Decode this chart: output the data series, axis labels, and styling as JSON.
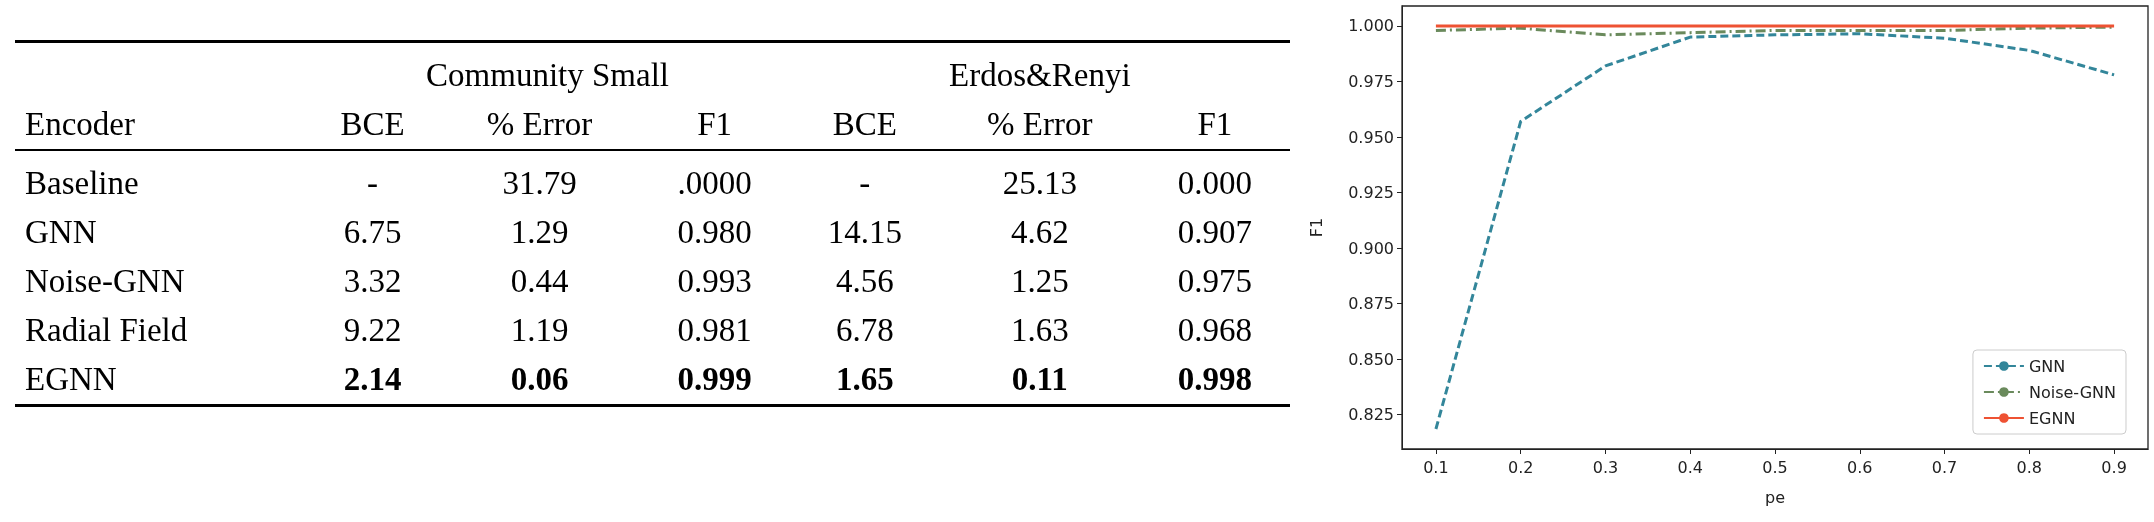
{
  "chart_data": [
    {
      "type": "other",
      "ylabel": "Encoder",
      "annotations": [
        "Community Small",
        "Erdos&Renyi"
      ],
      "categories": [
        "BCE",
        "% Error",
        "F1",
        "BCE",
        "% Error",
        "F1"
      ],
      "y_categories": [
        "Baseline",
        "GNN",
        "Noise-GNN",
        "Radial Field",
        "EGNN"
      ],
      "cell_labels": [
        [
          "-",
          "31.79",
          ".0000",
          "-",
          "25.13",
          "0.000"
        ],
        [
          "6.75",
          "1.29",
          "0.980",
          "14.15",
          "4.62",
          "0.907"
        ],
        [
          "3.32",
          "0.44",
          "0.993",
          "4.56",
          "1.25",
          "0.975"
        ],
        [
          "9.22",
          "1.19",
          "0.981",
          "6.78",
          "1.63",
          "0.968"
        ],
        [
          "2.14",
          "0.06",
          "0.999",
          "1.65",
          "0.11",
          "0.998"
        ]
      ]
    },
    {
      "type": "line",
      "xlabel": "pe",
      "ylabel": "F1",
      "x": [
        0.1,
        0.2,
        0.3,
        0.4,
        0.5,
        0.6,
        0.7,
        0.8,
        0.9
      ],
      "series": [
        {
          "name": "GNN",
          "color": "#33869a",
          "line_style": "dashed",
          "values": [
            0.8185,
            0.957,
            0.982,
            0.995,
            0.996,
            0.9965,
            0.9945,
            0.989,
            0.978
          ]
        },
        {
          "name": "Noise-GNN",
          "color": "#6a8a5c",
          "line_style": "dashdot",
          "values": [
            0.998,
            0.999,
            0.996,
            0.997,
            0.998,
            0.998,
            0.998,
            0.999,
            0.9995
          ]
        },
        {
          "name": "EGNN",
          "color": "#ee5233",
          "line_style": "solid",
          "values": [
            1.0,
            1.0,
            1.0,
            1.0,
            1.0,
            1.0,
            1.0,
            1.0,
            1.0
          ]
        }
      ],
      "xlim": [
        0.06,
        0.94
      ],
      "xticks": [
        0.1,
        0.2,
        0.3,
        0.4,
        0.5,
        0.6,
        0.7,
        0.8,
        0.9
      ],
      "ylim": [
        0.8095,
        1.009
      ],
      "yticks": [
        {
          "value": 0.825,
          "label": "0.825"
        },
        {
          "value": 0.85,
          "label": "0.850"
        },
        {
          "value": 0.875,
          "label": "0.875"
        },
        {
          "value": 0.9,
          "label": "0.900"
        },
        {
          "value": 0.925,
          "label": "0.925"
        },
        {
          "value": 0.95,
          "label": "0.950"
        },
        {
          "value": 0.975,
          "label": "0.975"
        },
        {
          "value": 1.0,
          "label": "1.000"
        }
      ],
      "grid": false,
      "legend": "bottom right",
      "marker": "none"
    }
  ]
}
